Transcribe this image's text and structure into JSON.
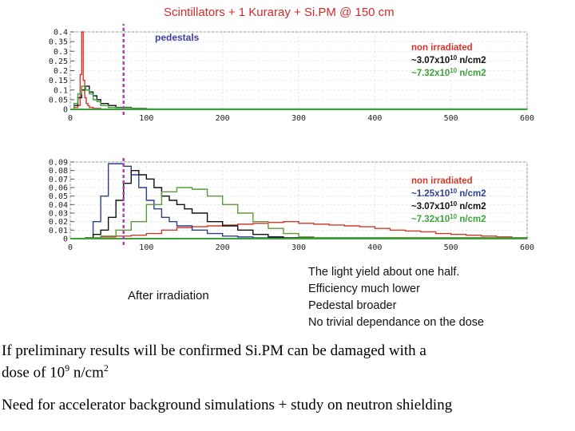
{
  "chart_data": [
    {
      "type": "line",
      "title": "Scintillators + 1 Kuraray + Si.PM @ 150 cm",
      "label": "pedestals",
      "xlim": [
        0,
        600
      ],
      "ylim": [
        0,
        0.4
      ],
      "x_ticks": [
        "0",
        "100",
        "200",
        "300",
        "400",
        "500",
        "600"
      ],
      "y_ticks": [
        "0",
        "0.05",
        "0.1",
        "0.15",
        "0.2",
        "0.25",
        "0.3",
        "0.35",
        "0.4"
      ],
      "marker_x": 70,
      "series": [
        {
          "name": "non irradiated",
          "color": "#e0312b",
          "x": [
            0,
            5,
            10,
            13,
            15,
            17,
            19,
            21,
            23,
            25,
            30,
            40,
            60,
            100,
            600
          ],
          "y": [
            0,
            0.01,
            0.02,
            0.18,
            0.4,
            0.15,
            0.06,
            0.03,
            0.02,
            0.01,
            0.005,
            0.002,
            0.001,
            0,
            0
          ]
        },
        {
          "name": "~3.07x10^10 n/cm2",
          "color": "#111111",
          "x": [
            0,
            5,
            10,
            15,
            20,
            25,
            30,
            35,
            40,
            50,
            60,
            80,
            100,
            600
          ],
          "y": [
            0,
            0.02,
            0.06,
            0.1,
            0.12,
            0.09,
            0.07,
            0.05,
            0.03,
            0.02,
            0.01,
            0.005,
            0.002,
            0
          ]
        },
        {
          "name": "~7.32x10^10 n/cm2",
          "color": "#3aa33a",
          "x": [
            0,
            5,
            10,
            15,
            20,
            25,
            30,
            35,
            40,
            50,
            60,
            80,
            100,
            600
          ],
          "y": [
            0,
            0.03,
            0.08,
            0.12,
            0.1,
            0.08,
            0.05,
            0.04,
            0.02,
            0.01,
            0.008,
            0.004,
            0.002,
            0
          ]
        }
      ]
    },
    {
      "type": "line",
      "xlim": [
        0,
        600
      ],
      "ylim": [
        0,
        0.09
      ],
      "x_ticks": [
        "0",
        "100",
        "200",
        "300",
        "400",
        "500",
        "600"
      ],
      "y_ticks": [
        "0",
        "0.01",
        "0.02",
        "0.03",
        "0.04",
        "0.05",
        "0.06",
        "0.07",
        "0.08",
        "0.09"
      ],
      "marker_x": 70,
      "series": [
        {
          "name": "non irradiated",
          "color": "#d23a2a",
          "x": [
            0,
            20,
            40,
            60,
            80,
            100,
            120,
            140,
            160,
            180,
            200,
            220,
            240,
            260,
            280,
            300,
            320,
            340,
            360,
            380,
            400,
            420,
            440,
            460,
            480,
            500,
            520,
            540,
            560,
            580,
            600
          ],
          "y": [
            0,
            0.001,
            0.002,
            0.003,
            0.004,
            0.006,
            0.01,
            0.013,
            0.014,
            0.015,
            0.016,
            0.017,
            0.018,
            0.019,
            0.02,
            0.018,
            0.017,
            0.016,
            0.015,
            0.014,
            0.012,
            0.01,
            0.009,
            0.008,
            0.006,
            0.005,
            0.004,
            0.003,
            0.002,
            0.001,
            0
          ]
        },
        {
          "name": "~1.25x10^10 n/cm2",
          "color": "#2c3f8f",
          "x": [
            0,
            20,
            30,
            40,
            50,
            60,
            70,
            80,
            90,
            100,
            110,
            120,
            130,
            140,
            160,
            180,
            200,
            220,
            240,
            260,
            280,
            300,
            320,
            600
          ],
          "y": [
            0,
            0.001,
            0.02,
            0.05,
            0.088,
            0.088,
            0.085,
            0.075,
            0.06,
            0.045,
            0.035,
            0.025,
            0.02,
            0.015,
            0.01,
            0.006,
            0.003,
            0.002,
            0.001,
            0.001,
            0,
            0,
            0,
            0
          ]
        },
        {
          "name": "~3.07x10^10 n/cm2",
          "color": "#111111",
          "x": [
            0,
            20,
            30,
            40,
            50,
            60,
            70,
            80,
            90,
            100,
            110,
            120,
            130,
            140,
            150,
            160,
            180,
            200,
            220,
            240,
            260,
            280,
            600
          ],
          "y": [
            0,
            0.001,
            0.005,
            0.01,
            0.025,
            0.045,
            0.065,
            0.08,
            0.075,
            0.07,
            0.06,
            0.05,
            0.045,
            0.04,
            0.035,
            0.03,
            0.02,
            0.015,
            0.01,
            0.005,
            0.002,
            0.001,
            0
          ]
        },
        {
          "name": "~7.32x10^10 n/cm2",
          "color": "#5e9a3a",
          "x": [
            0,
            20,
            40,
            60,
            80,
            100,
            120,
            140,
            160,
            180,
            200,
            220,
            240,
            260,
            280,
            300,
            320,
            600
          ],
          "y": [
            0,
            0.001,
            0.003,
            0.01,
            0.02,
            0.04,
            0.055,
            0.06,
            0.058,
            0.05,
            0.04,
            0.03,
            0.02,
            0.012,
            0.006,
            0.002,
            0.001,
            0
          ]
        }
      ]
    }
  ],
  "legend1": [
    {
      "text": "non irradiated",
      "sup": "",
      "unit": "",
      "color": "#e0312b"
    },
    {
      "text": "~3.07x10",
      "sup": "10",
      "unit": " n/cm2",
      "color": "#111111"
    },
    {
      "text": "~7.32x10",
      "sup": "10",
      "unit": " n/cm2",
      "color": "#3aa33a"
    }
  ],
  "legend2": [
    {
      "text": "non irradiated",
      "sup": "",
      "unit": "",
      "color": "#d23a2a"
    },
    {
      "text": "~1.25x10",
      "sup": "10",
      "unit": " n/cm2",
      "color": "#2c3f8f"
    },
    {
      "text": "~3.07x10",
      "sup": "10",
      "unit": " n/cm2",
      "color": "#111111"
    },
    {
      "text": "~7.32x10",
      "sup": "10",
      "unit": " n/cm2",
      "color": "#3aa33a"
    }
  ],
  "annotations": {
    "after": "After irradiation",
    "notes": [
      "The light yield about one half.",
      "Efficiency much lower",
      "Pedestal broader",
      "No trivial dependance on the dose"
    ]
  },
  "text": {
    "line1": "If preliminary results will be confirmed Si.PM can be damaged with a",
    "line2_prefix": "dose of  10",
    "line2_exp": "9",
    "line2_mid": " n/cm",
    "line2_exp2": "2",
    "line3": "Need for accelerator background simulations + study on neutron shielding"
  }
}
